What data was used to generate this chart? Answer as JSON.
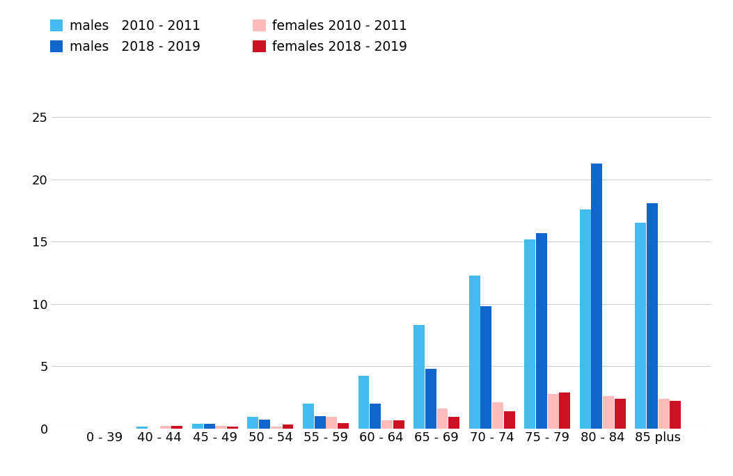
{
  "categories": [
    "0 - 39",
    "40 - 44",
    "45 - 49",
    "50 - 54",
    "55 - 59",
    "60 - 64",
    "65 - 69",
    "70 - 74",
    "75 - 79",
    "80 - 84",
    "85 plus"
  ],
  "males_2010_2011": [
    0.0,
    0.15,
    0.35,
    0.9,
    2.0,
    4.2,
    8.3,
    12.3,
    15.2,
    17.6,
    16.5
  ],
  "males_2018_2019": [
    0.0,
    0.0,
    0.35,
    0.7,
    1.0,
    2.0,
    4.8,
    9.8,
    15.7,
    21.3,
    18.1
  ],
  "females_2010_2011": [
    0.0,
    0.2,
    0.2,
    0.15,
    0.9,
    0.65,
    1.6,
    2.1,
    2.8,
    2.6,
    2.4
  ],
  "females_2018_2019": [
    0.0,
    0.2,
    0.15,
    0.3,
    0.45,
    0.65,
    0.9,
    1.4,
    2.9,
    2.4,
    2.2
  ],
  "color_males_2010": "#44BBEE",
  "color_males_2019": "#1166CC",
  "color_females_2010": "#FFBBBB",
  "color_females_2019": "#CC1122",
  "ylim": [
    0,
    26
  ],
  "yticks": [
    0,
    5,
    10,
    15,
    20,
    25
  ],
  "background_color": "#FFFFFF",
  "grid_color": "#CCCCCC",
  "legend": {
    "males_2010_label": "males   2010 - 2011",
    "males_2019_label": "males   2018 - 2019",
    "females_2010_label": "females 2010 - 2011",
    "females_2019_label": "females 2018 - 2019"
  }
}
